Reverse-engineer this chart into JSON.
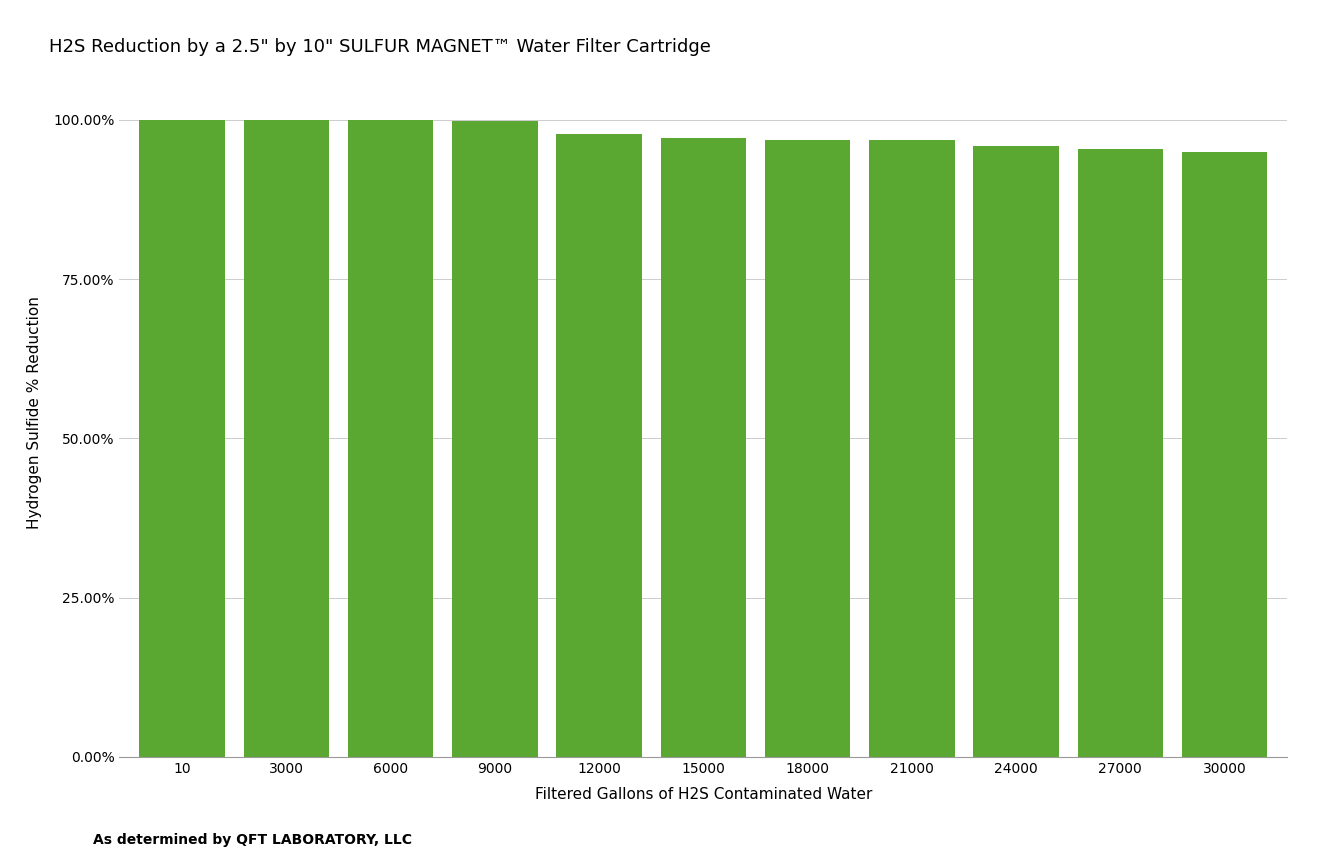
{
  "title": "H2S Reduction by a 2.5\" by 10\" SULFUR MAGNET™ Water Filter Cartridge",
  "xlabel": "Filtered Gallons of H2S Contaminated Water",
  "ylabel": "Hydrogen Sulfide % Reduction",
  "footnote": "As determined by QFT LABORATORY, LLC",
  "categories": [
    "10",
    "3000",
    "6000",
    "9000",
    "12000",
    "15000",
    "18000",
    "21000",
    "24000",
    "27000",
    "30000"
  ],
  "values": [
    1.0,
    1.0,
    0.999,
    0.998,
    0.977,
    0.972,
    0.968,
    0.9675,
    0.959,
    0.9535,
    0.95
  ],
  "bar_color": "#5aA732",
  "background_color": "#ffffff",
  "ylim": [
    0,
    1.08
  ],
  "yticks": [
    0.0,
    0.25,
    0.5,
    0.75,
    1.0
  ],
  "ytick_labels": [
    "0.00%",
    "25.00%",
    "50.00%",
    "75.00%",
    "100.00%"
  ],
  "title_fontsize": 13,
  "axis_label_fontsize": 11,
  "tick_fontsize": 10,
  "footnote_fontsize": 10,
  "bar_width": 0.82
}
